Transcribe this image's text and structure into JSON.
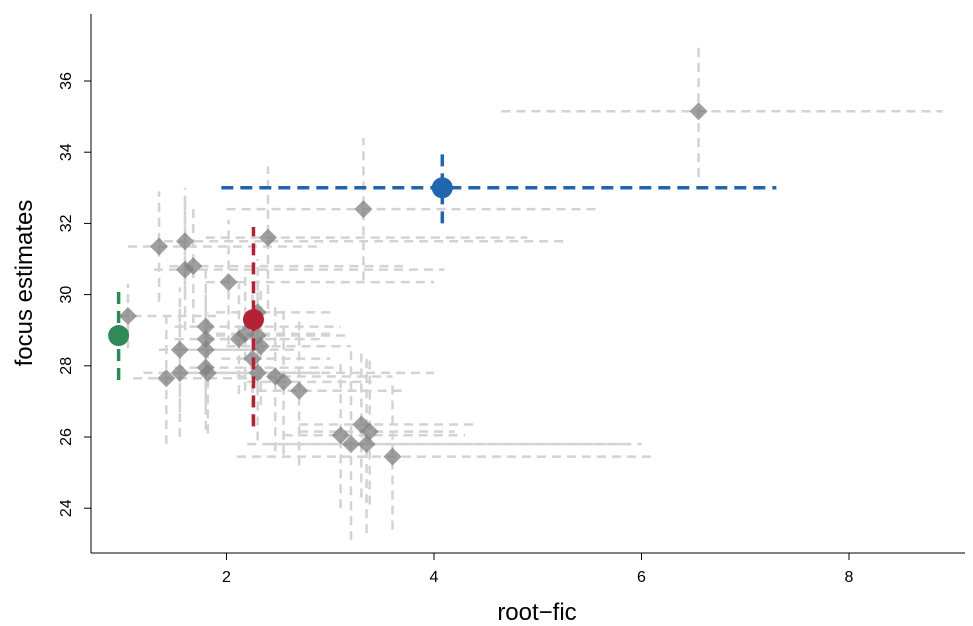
{
  "chart_data": {
    "type": "scatter",
    "xlabel": "root−fic",
    "ylabel": "focus estimates",
    "xlim": [
      0.7,
      9.2
    ],
    "ylim": [
      22.5,
      37.7
    ],
    "xticks": [
      2,
      4,
      6,
      8
    ],
    "yticks": [
      24,
      26,
      28,
      30,
      32,
      34,
      36
    ],
    "grid": false,
    "colors": {
      "background_points": "#808080",
      "background_intervals": "#d3d3d3",
      "highlight_green": "#2e8b57",
      "highlight_red": "#b22234",
      "highlight_blue": "#2166ac"
    },
    "series": [
      {
        "marker": "diamond",
        "color": "#808080",
        "points": [
          {
            "x": 6.55,
            "y": 35.15,
            "xlo": 4.65,
            "xhi": 8.9,
            "ylo": 33.3,
            "yhi": 37.1
          },
          {
            "x": 3.32,
            "y": 32.4,
            "xlo": 2.0,
            "xhi": 5.6,
            "ylo": 30.4,
            "yhi": 34.4
          },
          {
            "x": 2.4,
            "y": 31.6,
            "xlo": 1.8,
            "xhi": 4.9,
            "ylo": 29.6,
            "yhi": 33.6
          },
          {
            "x": 1.35,
            "y": 31.35,
            "xlo": 1.05,
            "xhi": 2.9,
            "ylo": 29.8,
            "yhi": 32.9
          },
          {
            "x": 1.6,
            "y": 31.5,
            "xlo": 1.4,
            "xhi": 5.3,
            "ylo": 30.0,
            "yhi": 33.0
          },
          {
            "x": 1.6,
            "y": 30.7,
            "xlo": 1.3,
            "xhi": 4.1,
            "ylo": 29.0,
            "yhi": 32.6
          },
          {
            "x": 1.68,
            "y": 30.8,
            "xlo": 1.45,
            "xhi": 3.7,
            "ylo": 29.2,
            "yhi": 32.4
          },
          {
            "x": 2.02,
            "y": 30.35,
            "xlo": 1.8,
            "xhi": 4.0,
            "ylo": 28.6,
            "yhi": 32.1
          },
          {
            "x": 1.05,
            "y": 29.4,
            "xlo": 0.95,
            "xhi": 1.9,
            "ylo": 28.5,
            "yhi": 30.3
          },
          {
            "x": 2.3,
            "y": 29.5,
            "xlo": 1.9,
            "xhi": 3.0,
            "ylo": 28.0,
            "yhi": 31.0
          },
          {
            "x": 1.8,
            "y": 29.1,
            "xlo": 1.5,
            "xhi": 3.1,
            "ylo": 27.5,
            "yhi": 30.7
          },
          {
            "x": 1.8,
            "y": 28.75,
            "xlo": 1.5,
            "xhi": 2.8,
            "ylo": 27.2,
            "yhi": 30.3
          },
          {
            "x": 2.18,
            "y": 28.9,
            "xlo": 1.9,
            "xhi": 3.0,
            "ylo": 27.3,
            "yhi": 30.5
          },
          {
            "x": 2.12,
            "y": 28.75,
            "xlo": 1.8,
            "xhi": 2.9,
            "ylo": 27.2,
            "yhi": 30.3
          },
          {
            "x": 2.3,
            "y": 28.85,
            "xlo": 1.9,
            "xhi": 3.2,
            "ylo": 27.3,
            "yhi": 30.4
          },
          {
            "x": 1.55,
            "y": 28.45,
            "xlo": 1.35,
            "xhi": 2.3,
            "ylo": 26.7,
            "yhi": 30.2
          },
          {
            "x": 1.8,
            "y": 28.45,
            "xlo": 1.55,
            "xhi": 2.7,
            "ylo": 26.8,
            "yhi": 30.1
          },
          {
            "x": 2.33,
            "y": 28.55,
            "xlo": 2.0,
            "xhi": 3.2,
            "ylo": 26.9,
            "yhi": 30.2
          },
          {
            "x": 2.25,
            "y": 28.2,
            "xlo": 1.95,
            "xhi": 3.0,
            "ylo": 26.4,
            "yhi": 30.0
          },
          {
            "x": 1.8,
            "y": 27.95,
            "xlo": 1.5,
            "xhi": 3.1,
            "ylo": 26.2,
            "yhi": 29.7
          },
          {
            "x": 1.82,
            "y": 27.8,
            "xlo": 1.55,
            "xhi": 2.9,
            "ylo": 26.1,
            "yhi": 29.5
          },
          {
            "x": 1.55,
            "y": 27.8,
            "xlo": 1.2,
            "xhi": 3.0,
            "ylo": 26.0,
            "yhi": 29.6
          },
          {
            "x": 1.42,
            "y": 27.65,
            "xlo": 1.1,
            "xhi": 2.5,
            "ylo": 25.8,
            "yhi": 29.5
          },
          {
            "x": 2.3,
            "y": 27.8,
            "xlo": 1.9,
            "xhi": 4.0,
            "ylo": 25.9,
            "yhi": 29.7
          },
          {
            "x": 2.47,
            "y": 27.7,
            "xlo": 2.1,
            "xhi": 3.6,
            "ylo": 25.6,
            "yhi": 29.8
          },
          {
            "x": 2.55,
            "y": 27.55,
            "xlo": 2.2,
            "xhi": 3.4,
            "ylo": 25.5,
            "yhi": 29.6
          },
          {
            "x": 2.7,
            "y": 27.3,
            "xlo": 2.3,
            "xhi": 3.7,
            "ylo": 25.2,
            "yhi": 29.4
          },
          {
            "x": 3.1,
            "y": 26.05,
            "xlo": 2.55,
            "xhi": 4.3,
            "ylo": 24.0,
            "yhi": 28.1
          },
          {
            "x": 3.3,
            "y": 26.35,
            "xlo": 2.7,
            "xhi": 4.4,
            "ylo": 24.3,
            "yhi": 28.4
          },
          {
            "x": 3.38,
            "y": 26.15,
            "xlo": 2.7,
            "xhi": 4.2,
            "ylo": 24.1,
            "yhi": 28.2
          },
          {
            "x": 3.2,
            "y": 25.8,
            "xlo": 2.4,
            "xhi": 5.9,
            "ylo": 23.1,
            "yhi": 28.5
          },
          {
            "x": 3.35,
            "y": 25.8,
            "xlo": 2.2,
            "xhi": 6.0,
            "ylo": 23.3,
            "yhi": 28.3
          },
          {
            "x": 3.6,
            "y": 25.45,
            "xlo": 2.1,
            "xhi": 6.1,
            "ylo": 23.4,
            "yhi": 27.5
          }
        ]
      },
      {
        "marker": "circle",
        "color": "#2e8b57",
        "points": [
          {
            "x": 0.96,
            "y": 28.85,
            "xlo": 0.94,
            "xhi": 0.98,
            "ylo": 27.6,
            "yhi": 30.2
          }
        ]
      },
      {
        "marker": "circle",
        "color": "#b22234",
        "points": [
          {
            "x": 2.26,
            "y": 29.3,
            "xlo": 2.24,
            "xhi": 2.28,
            "ylo": 26.3,
            "yhi": 31.9
          }
        ]
      },
      {
        "marker": "circle",
        "color": "#2166ac",
        "points": [
          {
            "x": 4.08,
            "y": 33.0,
            "xlo": 1.95,
            "xhi": 7.3,
            "ylo": 32.0,
            "yhi": 34.0
          }
        ]
      }
    ]
  }
}
